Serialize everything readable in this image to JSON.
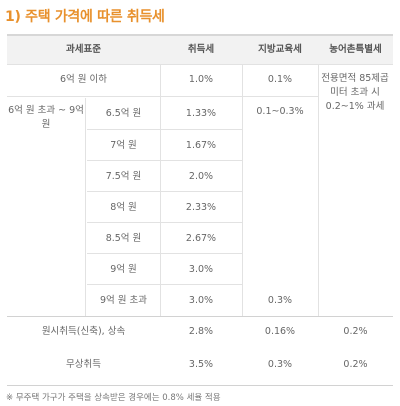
{
  "title": "1) 주택 가격에 따른 취득세",
  "header": {
    "base": "과세표준",
    "acq": "취득세",
    "edu": "지방교육세",
    "rural": "농어촌특별세"
  },
  "row_under6": {
    "label": "6억 원 이하",
    "acq": "1.0%",
    "edu": "0.1%"
  },
  "rural_note": "전용면적 85제곱미터 초과 시 0.2~1% 과세",
  "mid_group": {
    "label": "6억 원 초과 ~ 9억 원",
    "edu": "0.1~0.3%",
    "rows": [
      {
        "label": "6.5억 원",
        "acq": "1.33%"
      },
      {
        "label": "7억 원",
        "acq": "1.67%"
      },
      {
        "label": "7.5억 원",
        "acq": "2.0%"
      },
      {
        "label": "8억 원",
        "acq": "2.33%"
      },
      {
        "label": "8.5억 원",
        "acq": "2.67%"
      },
      {
        "label": "9억 원",
        "acq": "3.0%"
      }
    ]
  },
  "row_over9": {
    "label": "9억 원 초과",
    "acq": "3.0%",
    "edu": "0.3%"
  },
  "row_original": {
    "label": "원시취득(신축), 상속",
    "acq": "2.8%",
    "edu": "0.16%",
    "rural": "0.2%"
  },
  "row_gift": {
    "label": "무상취득",
    "acq": "3.5%",
    "edu": "0.3%",
    "rural": "0.2%"
  },
  "footnote": "※ 무주택 가구가 주택을 상속받은 경우에는 0.8% 세율 적용"
}
